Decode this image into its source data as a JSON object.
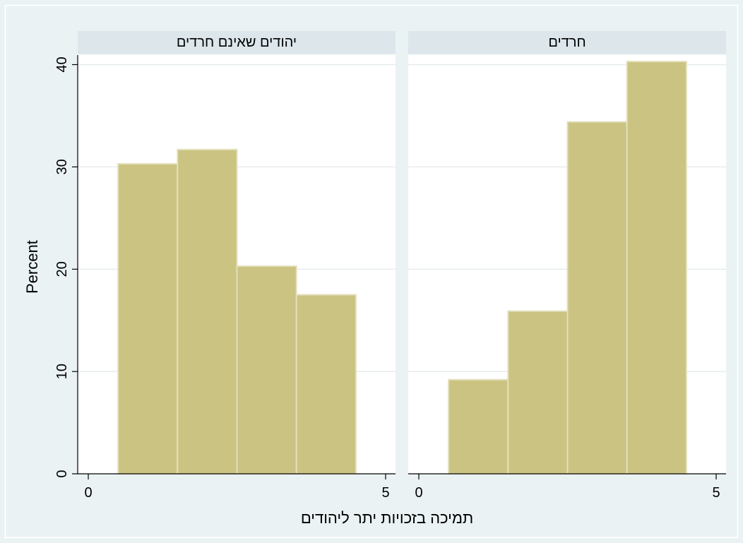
{
  "chart_data": {
    "type": "bar",
    "kind": "histogram",
    "ylabel": "Percent",
    "xlabel": "תמיכה בזכויות יתר ליהודים",
    "xlim": [
      0,
      5
    ],
    "ylim": [
      0,
      40
    ],
    "xticks": [
      0,
      5
    ],
    "yticks": [
      0,
      10,
      20,
      30,
      40
    ],
    "grid": true,
    "colors": {
      "bar_fill": "#cbc381",
      "bar_edge": "#e3e0bd",
      "panel_strip": "#dce6eb",
      "outer_background": "#eaf2f3",
      "grid": "#e6ecee"
    },
    "panels": [
      {
        "title": "יהודים שאינם חרדים",
        "bins": [
          {
            "from": 0.5,
            "to": 1.5,
            "value": 30.3
          },
          {
            "from": 1.5,
            "to": 2.5,
            "value": 31.7
          },
          {
            "from": 2.5,
            "to": 3.5,
            "value": 20.3
          },
          {
            "from": 3.5,
            "to": 4.5,
            "value": 17.5
          }
        ]
      },
      {
        "title": "חרדים",
        "bins": [
          {
            "from": 0.5,
            "to": 1.5,
            "value": 9.2
          },
          {
            "from": 1.5,
            "to": 2.5,
            "value": 15.9
          },
          {
            "from": 2.5,
            "to": 3.5,
            "value": 34.4
          },
          {
            "from": 3.5,
            "to": 4.5,
            "value": 40.3
          }
        ]
      }
    ]
  }
}
